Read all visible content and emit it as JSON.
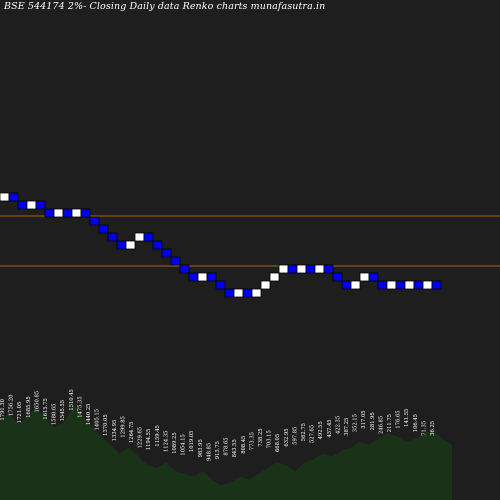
{
  "header": {
    "title": "BSE 544174  2%-  Closing Daily data  Renko  charts munafasutra.in"
  },
  "chart_data": {
    "type": "renko",
    "title": "BSE 544174  2%-  Closing Daily data  Renko  charts munafasutra.in",
    "brick_size_percent": 2,
    "series": [
      {
        "bricks": [
          "up",
          "down",
          "down",
          "up",
          "down",
          "down",
          "up",
          "down",
          "up",
          "down",
          "down",
          "down",
          "down",
          "down",
          "up",
          "up",
          "down",
          "down",
          "down",
          "down",
          "down",
          "down",
          "up",
          "down",
          "down",
          "down",
          "up",
          "down",
          "up",
          "up",
          "up",
          "up",
          "down",
          "up",
          "down",
          "up",
          "down",
          "down",
          "down",
          "up",
          "up",
          "down",
          "down",
          "up",
          "down",
          "up",
          "down",
          "up",
          "down"
        ]
      }
    ],
    "horizontal_lines": [
      1665,
      1484
    ],
    "colors": {
      "background": "#1e1e1e",
      "up_brick": "#ffffff",
      "down_brick": "#0000ee",
      "brick_border": "#000000",
      "reference_line": "#b0640a",
      "volume_area": "#1a3217",
      "price_label": "#ffffff"
    },
    "price_labels": [
      "1791.30",
      "1756.20",
      "1721.05",
      "1685.95",
      "1650.85",
      "1615.75",
      "1580.65",
      "1545.55",
      "1510.45",
      "1475.35",
      "1440.25",
      "1405.15",
      "1370.05",
      "1334.95",
      "1299.85",
      "1264.75",
      "1229.65",
      "1194.55",
      "1159.45",
      "1124.35",
      "1089.25",
      "1054.15",
      "1019.05",
      "983.95",
      "948.85",
      "913.75",
      "878.65",
      "843.55",
      "808.45",
      "773.35",
      "738.25",
      "703.15",
      "668.05",
      "632.95",
      "597.85",
      "562.75",
      "527.65",
      "492.55",
      "457.45",
      "422.35",
      "387.25",
      "352.15",
      "317.05",
      "281.95",
      "246.85",
      "211.75",
      "176.65",
      "141.55",
      "106.45",
      "71.35",
      "36.25"
    ],
    "volume": [
      55,
      60,
      52,
      58,
      64,
      56,
      50,
      54,
      66,
      58,
      50,
      44,
      38,
      32,
      36,
      30,
      24,
      22,
      26,
      20,
      18,
      16,
      20,
      14,
      10,
      12,
      16,
      14,
      18,
      22,
      26,
      24,
      20,
      26,
      28,
      32,
      30,
      34,
      36,
      40,
      38,
      42,
      46,
      44,
      40,
      42,
      46,
      48,
      42,
      38
    ]
  }
}
